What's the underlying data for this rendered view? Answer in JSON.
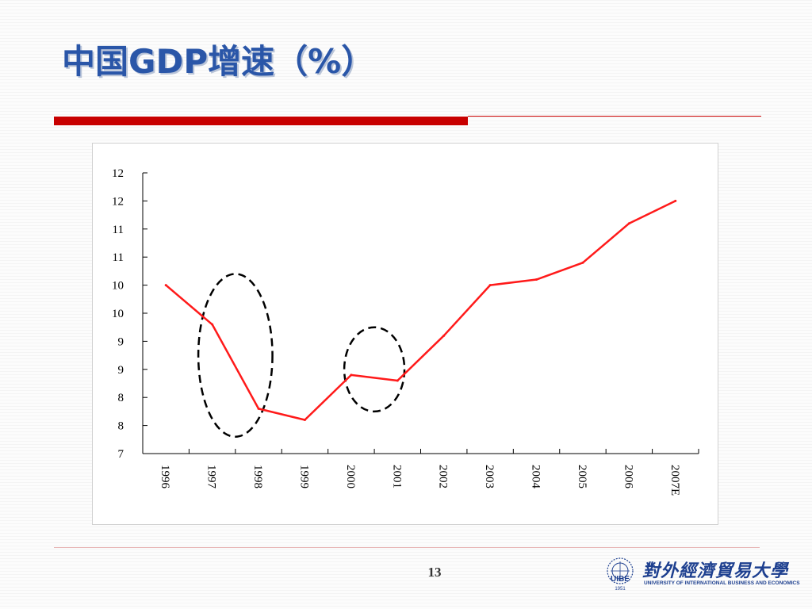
{
  "slide": {
    "title": "中国GDP增速（%）",
    "page_number": "13"
  },
  "logo": {
    "emblem_text": "UIBE",
    "emblem_year": "1951",
    "name_cn": "對外經濟貿易大學",
    "name_en": "UNIVERSITY OF INTERNATIONAL BUSINESS AND ECONOMICS"
  },
  "chart_data": {
    "type": "line",
    "categories": [
      "1996",
      "1997",
      "1998",
      "1999",
      "2000",
      "2001",
      "2002",
      "2003",
      "2004",
      "2005",
      "2006",
      "2007E"
    ],
    "series": [
      {
        "values": [
          10.0,
          9.3,
          7.8,
          7.6,
          8.4,
          8.3,
          9.1,
          10.0,
          10.1,
          10.4,
          11.1,
          11.5
        ],
        "color": "#ff1a1a"
      }
    ],
    "ylim": [
      7,
      12
    ],
    "y_tick_values": [
      7,
      7.5,
      8,
      8.5,
      9,
      9.5,
      10,
      10.5,
      11,
      11.5,
      12
    ],
    "y_tick_labels": [
      "7",
      "8",
      "8",
      "9",
      "9",
      "10",
      "10",
      "11",
      "11",
      "12",
      "12"
    ],
    "annotations": [
      {
        "type": "dashed-ellipse",
        "x_center": 1.5,
        "x_radius": 0.8,
        "y_center": 8.75,
        "y_radius": 1.45
      },
      {
        "type": "dashed-ellipse",
        "x_center": 4.5,
        "x_radius": 0.65,
        "y_center": 8.5,
        "y_radius": 0.75
      }
    ],
    "grid": false,
    "legend": "none",
    "title": "",
    "xlabel": "",
    "ylabel": ""
  }
}
